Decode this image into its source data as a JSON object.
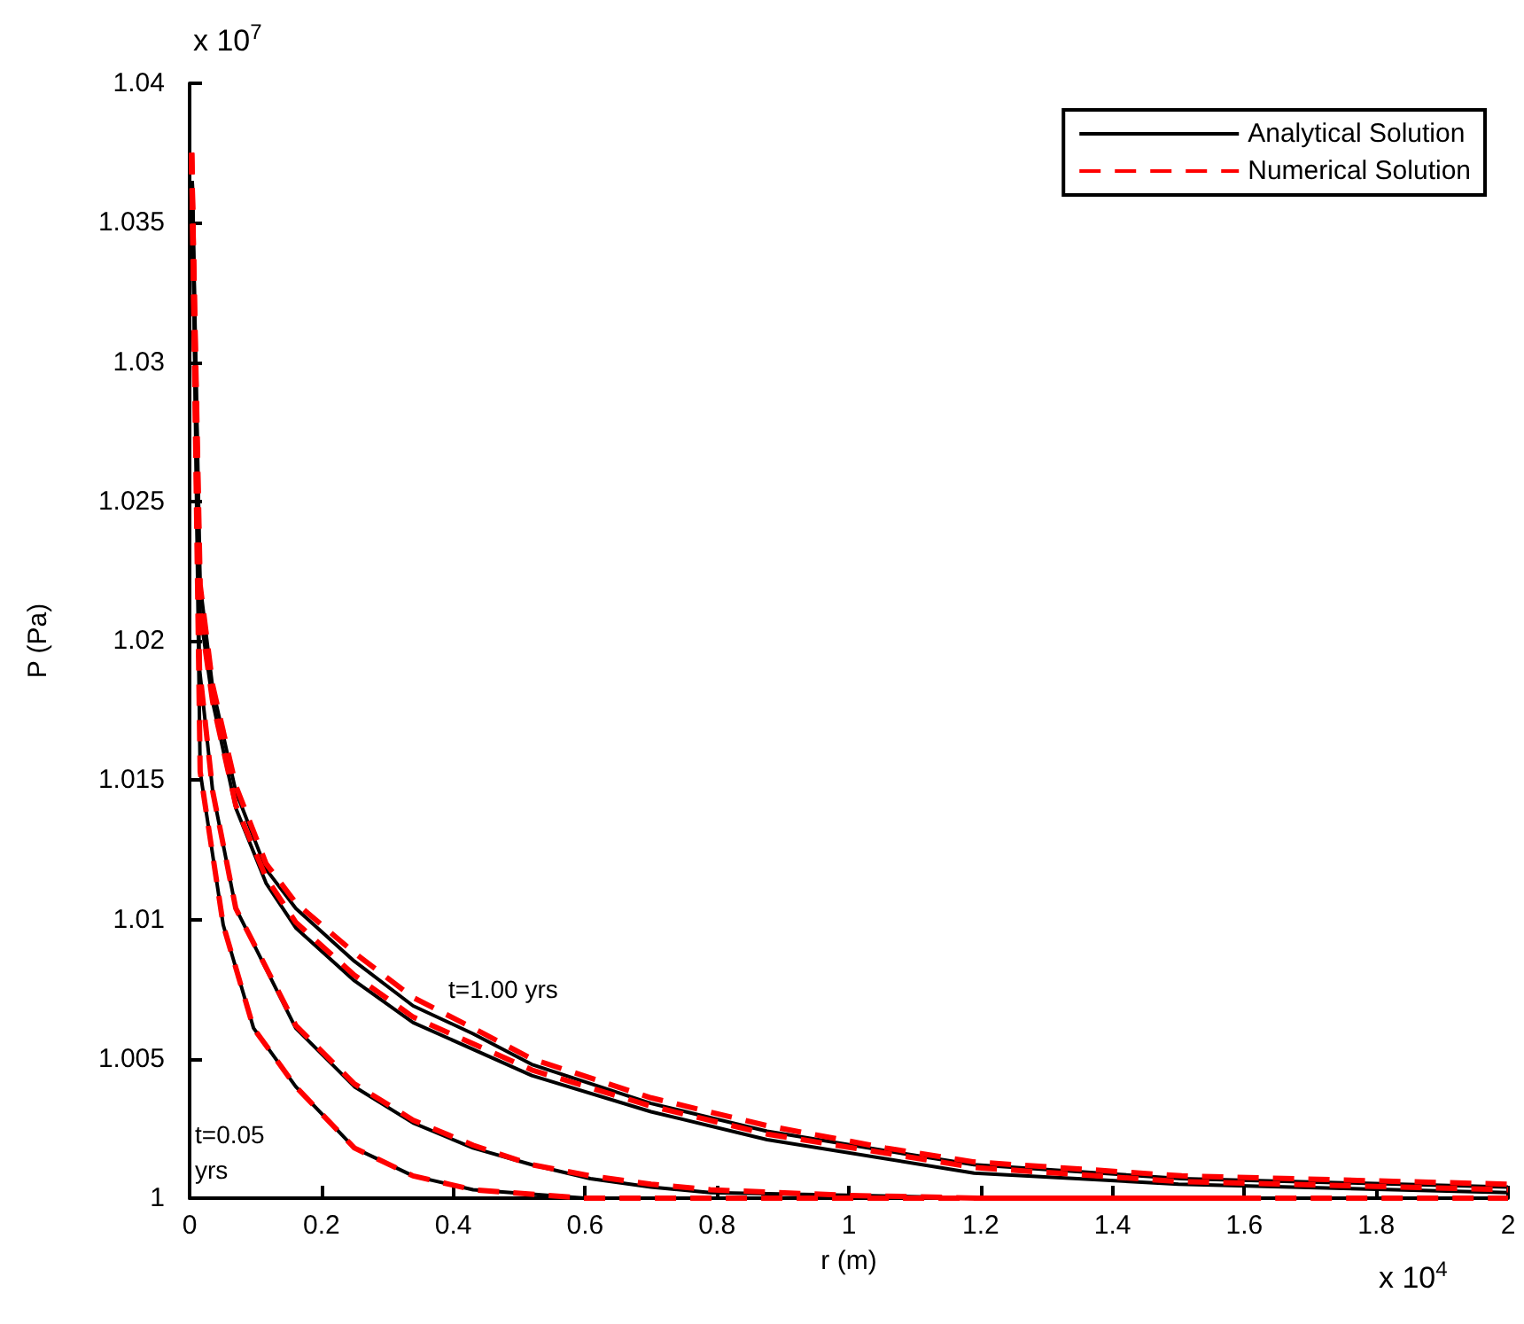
{
  "chart_data": {
    "type": "line",
    "xlabel": "r (m)",
    "ylabel": "P (Pa)",
    "xlim": [
      0,
      2
    ],
    "xticks": [
      0,
      0.2,
      0.4,
      0.6,
      0.8,
      1,
      1.2,
      1.4,
      1.6,
      1.8,
      2
    ],
    "ylim": [
      1,
      1.04
    ],
    "yticks": [
      1,
      1.005,
      1.01,
      1.015,
      1.02,
      1.025,
      1.03,
      1.035,
      1.04
    ],
    "grid": false,
    "legend": "top right",
    "marker": "none",
    "annotations": [
      "x 10$^{7}$",
      "x 10$^{4}$",
      "t=1.00 yrs",
      "t=0.05 yrs"
    ],
    "series": [
      {
        "name": "Analytical Solution",
        "color": "#000000",
        "line_style": "solid",
        "x": [
          0.004,
          0.016,
          0.051,
          0.097,
          0.161,
          0.25,
          0.339,
          0.43,
          0.6,
          1.6
        ],
        "values": [
          1.0365,
          1.0153,
          1.0098,
          1.0061,
          1.004,
          1.0018,
          1.0008,
          1.0003,
          1,
          1
        ]
      },
      {
        "color": "#000000",
        "line_style": "solid",
        "x": [
          0.004,
          0.015,
          0.035,
          0.07,
          0.161,
          0.25,
          0.339,
          0.43,
          0.519,
          0.608,
          0.7,
          0.79,
          1,
          1.2,
          2
        ],
        "values": [
          1.0365,
          1.019,
          1.0146,
          1.0104,
          1.0061,
          1.004,
          1.0027,
          1.0018,
          1.0012,
          1.0007,
          1.0004,
          1.0002,
          1.0001,
          1,
          1
        ]
      },
      {
        "color": "#000000",
        "line_style": "solid",
        "x": [
          0.004,
          0.016,
          0.035,
          0.07,
          0.116,
          0.161,
          0.25,
          0.339,
          0.519,
          0.7,
          0.876,
          1.19,
          1.5,
          2
        ],
        "values": [
          1.0365,
          1.021,
          1.0178,
          1.014,
          1.0113,
          1.0097,
          1.0078,
          1.0063,
          1.0044,
          1.0031,
          1.0021,
          1.0009,
          1.0005,
          1.0002
        ]
      },
      {
        "color": "#000000",
        "line_style": "solid",
        "x": [
          0.004,
          0.016,
          0.035,
          0.07,
          0.116,
          0.161,
          0.25,
          0.339,
          0.43,
          0.519,
          0.7,
          0.876,
          1.056,
          1.19,
          1.505,
          2
        ],
        "values": [
          1.0365,
          1.022,
          1.0183,
          1.0146,
          1.0118,
          1.0104,
          1.0085,
          1.0069,
          1.0059,
          1.0048,
          1.0034,
          1.0024,
          1.0017,
          1.0012,
          1.0007,
          1.0004
        ]
      },
      {
        "name": "Numerical Solution",
        "color": "#ff0000",
        "line_style": "dashed",
        "x": [
          0.003,
          0.016,
          0.051,
          0.097,
          0.161,
          0.25,
          0.339,
          0.43,
          0.6,
          1.6
        ],
        "values": [
          1.0375,
          1.0153,
          1.0098,
          1.0061,
          1.004,
          1.0018,
          1.0008,
          1.0003,
          1,
          1
        ]
      },
      {
        "color": "#ff0000",
        "line_style": "dashed",
        "x": [
          0.003,
          0.015,
          0.035,
          0.07,
          0.161,
          0.25,
          0.339,
          0.43,
          0.519,
          0.608,
          0.7,
          0.79,
          1,
          1.2,
          2
        ],
        "values": [
          1.0375,
          1.019,
          1.0146,
          1.0104,
          1.0062,
          1.0041,
          1.0028,
          1.0019,
          1.0012,
          1.0008,
          1.0005,
          1.0003,
          1.0001,
          1,
          1
        ]
      },
      {
        "color": "#ff0000",
        "line_style": "dashed",
        "x": [
          0.003,
          0.016,
          0.035,
          0.07,
          0.116,
          0.161,
          0.25,
          0.339,
          0.519,
          0.7,
          0.876,
          1.19,
          1.5,
          2
        ],
        "values": [
          1.0375,
          1.021,
          1.0178,
          1.0141,
          1.0115,
          1.0099,
          1.008,
          1.0065,
          1.0046,
          1.0033,
          1.0023,
          1.0011,
          1.0006,
          1.0003
        ]
      },
      {
        "color": "#ff0000",
        "line_style": "dashed",
        "x": [
          0.003,
          0.016,
          0.035,
          0.07,
          0.116,
          0.161,
          0.25,
          0.339,
          0.43,
          0.519,
          0.7,
          0.876,
          1.056,
          1.19,
          1.505,
          2
        ],
        "values": [
          1.0375,
          1.022,
          1.0184,
          1.0148,
          1.012,
          1.0106,
          1.0088,
          1.0072,
          1.0061,
          1.005,
          1.0036,
          1.0026,
          1.0018,
          1.0013,
          1.0008,
          1.0005
        ]
      }
    ]
  }
}
